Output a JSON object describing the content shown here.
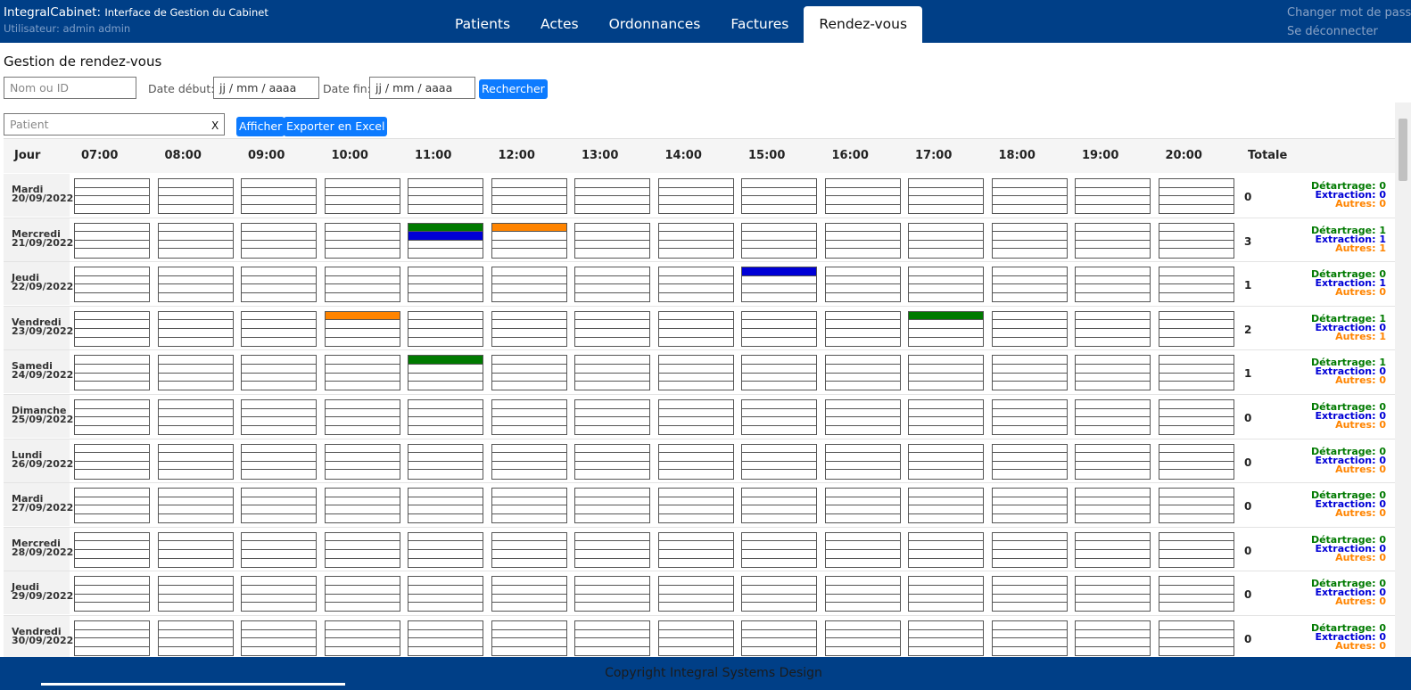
{
  "header": {
    "app_name": "IntegralCabinet:",
    "app_tagline": "Interface de Gestion du Cabinet",
    "user_label": "Utilisateur: admin admin",
    "tabs": [
      {
        "label": "Patients"
      },
      {
        "label": "Actes"
      },
      {
        "label": "Ordonnances"
      },
      {
        "label": "Factures"
      },
      {
        "label": "Rendez-vous",
        "active": true
      }
    ],
    "change_password": "Changer mot de passe",
    "logout": "Se déconnecter"
  },
  "page_title": "Gestion de rendez-vous",
  "search": {
    "name_placeholder": "Nom ou ID",
    "date_start_label": "Date début:",
    "date_start_value": "jj / mm / aaaa",
    "date_end_label": "Date fin:",
    "date_end_value": "jj / mm / aaaa",
    "search_button": "Rechercher"
  },
  "filter": {
    "patient_placeholder": "Patient",
    "clear": "X",
    "show_button": "Afficher",
    "export_button": "Exporter en Excel"
  },
  "schedule": {
    "day_col": "Jour",
    "total_col": "Totale",
    "hours": [
      "07:00",
      "08:00",
      "09:00",
      "10:00",
      "11:00",
      "12:00",
      "13:00",
      "14:00",
      "15:00",
      "16:00",
      "17:00",
      "18:00",
      "19:00",
      "20:00"
    ],
    "stat_labels": {
      "detartrage": "Détartrage:",
      "extraction": "Extraction:",
      "autres": "Autres:"
    },
    "colors": {
      "detartrage": "#007a00",
      "extraction": "#0000d6",
      "autres": "#ff8400"
    },
    "days": [
      {
        "name": "Mardi",
        "date": "20/09/2022",
        "total": 0,
        "detartrage": 0,
        "extraction": 0,
        "autres": 0,
        "bookings": []
      },
      {
        "name": "Mercredi",
        "date": "21/09/2022",
        "total": 3,
        "detartrage": 1,
        "extraction": 1,
        "autres": 1,
        "bookings": [
          {
            "hour": "11:00",
            "slot": 0,
            "type": "detartrage"
          },
          {
            "hour": "11:00",
            "slot": 1,
            "type": "extraction"
          },
          {
            "hour": "12:00",
            "slot": 0,
            "type": "autres"
          }
        ]
      },
      {
        "name": "Jeudi",
        "date": "22/09/2022",
        "total": 1,
        "detartrage": 0,
        "extraction": 1,
        "autres": 0,
        "bookings": [
          {
            "hour": "15:00",
            "slot": 0,
            "type": "extraction"
          }
        ]
      },
      {
        "name": "Vendredi",
        "date": "23/09/2022",
        "total": 2,
        "detartrage": 1,
        "extraction": 0,
        "autres": 1,
        "bookings": [
          {
            "hour": "10:00",
            "slot": 0,
            "type": "autres"
          },
          {
            "hour": "17:00",
            "slot": 0,
            "type": "detartrage"
          }
        ]
      },
      {
        "name": "Samedi",
        "date": "24/09/2022",
        "total": 1,
        "detartrage": 1,
        "extraction": 0,
        "autres": 0,
        "bookings": [
          {
            "hour": "11:00",
            "slot": 0,
            "type": "detartrage"
          }
        ]
      },
      {
        "name": "Dimanche",
        "date": "25/09/2022",
        "total": 0,
        "detartrage": 0,
        "extraction": 0,
        "autres": 0,
        "bookings": []
      },
      {
        "name": "Lundi",
        "date": "26/09/2022",
        "total": 0,
        "detartrage": 0,
        "extraction": 0,
        "autres": 0,
        "bookings": []
      },
      {
        "name": "Mardi",
        "date": "27/09/2022",
        "total": 0,
        "detartrage": 0,
        "extraction": 0,
        "autres": 0,
        "bookings": []
      },
      {
        "name": "Mercredi",
        "date": "28/09/2022",
        "total": 0,
        "detartrage": 0,
        "extraction": 0,
        "autres": 0,
        "bookings": []
      },
      {
        "name": "Jeudi",
        "date": "29/09/2022",
        "total": 0,
        "detartrage": 0,
        "extraction": 0,
        "autres": 0,
        "bookings": []
      },
      {
        "name": "Vendredi",
        "date": "30/09/2022",
        "total": 0,
        "detartrage": 0,
        "extraction": 0,
        "autres": 0,
        "bookings": []
      }
    ]
  },
  "footer": {
    "copyright": "Copyright Integral Systems Design"
  }
}
